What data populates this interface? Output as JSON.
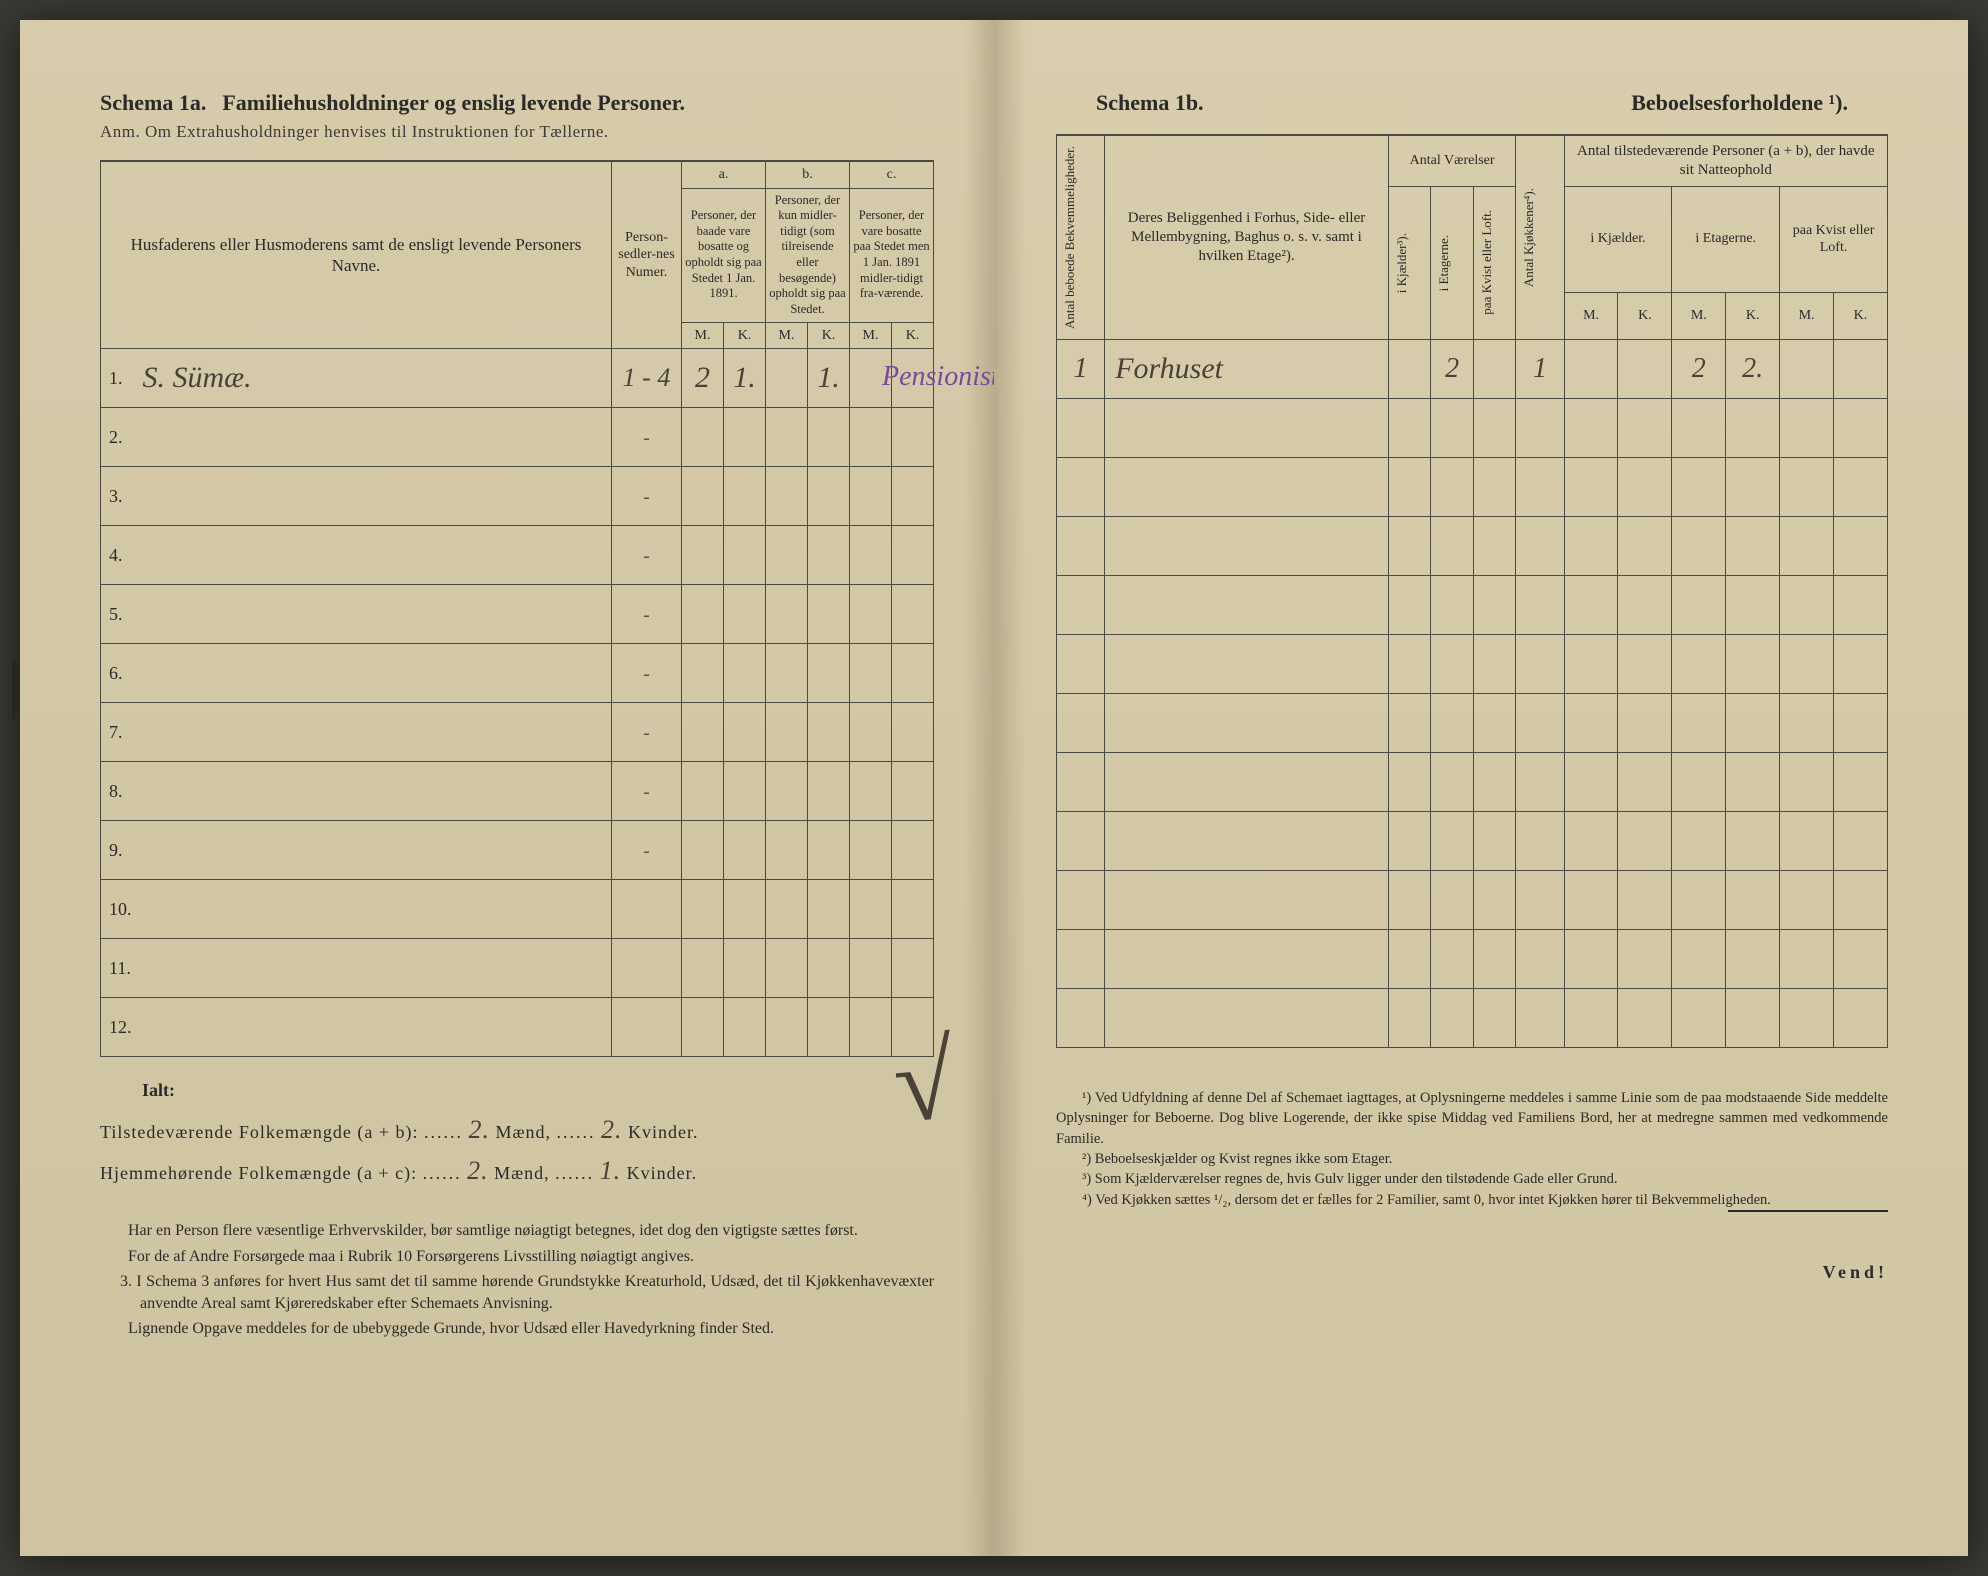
{
  "left": {
    "schema_label": "Schema 1a.",
    "schema_title": "Familiehusholdninger og enslig levende Personer.",
    "anm": "Anm. Om Extrahusholdninger henvises til Instruktionen for Tællerne.",
    "headers": {
      "name": "Husfaderens eller Husmoderens samt de ensligt levende Personers Navne.",
      "numcol": "Person-sedler-nes Numer.",
      "a_label": "a.",
      "a_text": "Personer, der baade vare bosatte og opholdt sig paa Stedet 1 Jan. 1891.",
      "b_label": "b.",
      "b_text": "Personer, der kun midler-tidigt (som tilreisende eller besøgende) opholdt sig paa Stedet.",
      "c_label": "c.",
      "c_text": "Personer, der vare bosatte paa Stedet men 1 Jan. 1891 midler-tidigt fra-værende.",
      "M": "M.",
      "K": "K."
    },
    "rows": [
      {
        "n": "1.",
        "name": "S. Sümæ.",
        "num": "1 - 4",
        "aM": "2",
        "aK": "1.",
        "bM": "",
        "bK": "1.",
        "cM": "",
        "cK": "",
        "annot": "Pensionist."
      },
      {
        "n": "2.",
        "name": "",
        "num": "-",
        "aM": "",
        "aK": "",
        "bM": "",
        "bK": "",
        "cM": "",
        "cK": ""
      },
      {
        "n": "3.",
        "name": "",
        "num": "-",
        "aM": "",
        "aK": "",
        "bM": "",
        "bK": "",
        "cM": "",
        "cK": ""
      },
      {
        "n": "4.",
        "name": "",
        "num": "-",
        "aM": "",
        "aK": "",
        "bM": "",
        "bK": "",
        "cM": "",
        "cK": ""
      },
      {
        "n": "5.",
        "name": "",
        "num": "-",
        "aM": "",
        "aK": "",
        "bM": "",
        "bK": "",
        "cM": "",
        "cK": ""
      },
      {
        "n": "6.",
        "name": "",
        "num": "-",
        "aM": "",
        "aK": "",
        "bM": "",
        "bK": "",
        "cM": "",
        "cK": ""
      },
      {
        "n": "7.",
        "name": "",
        "num": "-",
        "aM": "",
        "aK": "",
        "bM": "",
        "bK": "",
        "cM": "",
        "cK": ""
      },
      {
        "n": "8.",
        "name": "",
        "num": "-",
        "aM": "",
        "aK": "",
        "bM": "",
        "bK": "",
        "cM": "",
        "cK": ""
      },
      {
        "n": "9.",
        "name": "",
        "num": "-",
        "aM": "",
        "aK": "",
        "bM": "",
        "bK": "",
        "cM": "",
        "cK": ""
      },
      {
        "n": "10.",
        "name": "",
        "num": "",
        "aM": "",
        "aK": "",
        "bM": "",
        "bK": "",
        "cM": "",
        "cK": ""
      },
      {
        "n": "11.",
        "name": "",
        "num": "",
        "aM": "",
        "aK": "",
        "bM": "",
        "bK": "",
        "cM": "",
        "cK": ""
      },
      {
        "n": "12.",
        "name": "",
        "num": "",
        "aM": "",
        "aK": "",
        "bM": "",
        "bK": "",
        "cM": "",
        "cK": ""
      }
    ],
    "ialt": "Ialt:",
    "sum1_label_a": "Tilstedeværende Folkemængde (a + b):",
    "sum1_m": "2.",
    "sum1_maend": "Mænd,",
    "sum1_k": "2.",
    "sum1_kvinder": "Kvinder.",
    "sum2_label_a": "Hjemmehørende Folkemængde (a + c):",
    "sum2_m": "2.",
    "sum2_k": "1.",
    "notes_p1": "Har en Person flere væsentlige Erhvervskilder, bør samtlige nøiagtigt betegnes, idet dog den vigtigste sættes først.",
    "notes_p2": "For de af Andre Forsørgede maa i Rubrik 10 Forsørgerens Livsstilling nøiagtigt angives.",
    "notes_p3_num": "3.",
    "notes_p3": "I Schema 3 anføres for hvert Hus samt det til samme hørende Grundstykke Kreaturhold, Udsæd, det til Kjøkkenhavevæxter anvendte Areal samt Kjøreredskaber efter Schemaets Anvisning.",
    "notes_p4": "Lignende Opgave meddeles for de ubebyggede Grunde, hvor Udsæd eller Havedyrkning finder Sted."
  },
  "right": {
    "schema_label": "Schema 1b.",
    "schema_title": "Beboelsesforholdene ¹).",
    "headers": {
      "antal_beboede": "Antal beboede Bekvemmeligheder.",
      "belig": "Deres Beliggenhed i Forhus, Side- eller Mellembygning, Baghus o. s. v. samt i hvilken Etage²).",
      "antal_vaer": "Antal Værelser",
      "kjaelder": "i Kjælder³).",
      "etager": "i Etagerne.",
      "kvist": "paa Kvist eller Loft.",
      "antal_kjok": "Antal Kjøkkener⁴).",
      "tilst": "Antal tilstedeværende Personer (a + b), der havde sit Natteophold",
      "ikjael": "i Kjælder.",
      "ietager": "i Etagerne.",
      "paakvist": "paa Kvist eller Loft.",
      "M": "M.",
      "K": "K."
    },
    "row1": {
      "ab": "1",
      "belig": "Forhuset",
      "kj": "",
      "et": "2",
      "kv": "",
      "kjok": "1",
      "mM": "",
      "mK": "",
      "eM": "2",
      "eK": "2.",
      "lM": "",
      "lK": ""
    },
    "fn1": "¹) Ved Udfyldning af denne Del af Schemaet iagttages, at Oplysningerne meddeles i samme Linie som de paa modstaaende Side meddelte Oplysninger for Beboerne. Dog blive Logerende, der ikke spise Middag ved Familiens Bord, her at medregne sammen med vedkommende Familie.",
    "fn2": "²) Beboelseskjælder og Kvist regnes ikke som Etager.",
    "fn3": "³) Som Kjælderværelser regnes de, hvis Gulv ligger under den tilstødende Gade eller Grund.",
    "fn4": "⁴) Ved Kjøkken sættes ¹/₂, dersom det er fælles for 2 Familier, samt 0, hvor intet Kjøkken hører til Bekvemmeligheden.",
    "vend": "Vend!"
  },
  "colors": {
    "paper": "#d4c9a8",
    "ink": "#2a2a28",
    "handwriting": "#4a4238",
    "purple": "#7a4a9a",
    "rule": "#4a4a44"
  }
}
